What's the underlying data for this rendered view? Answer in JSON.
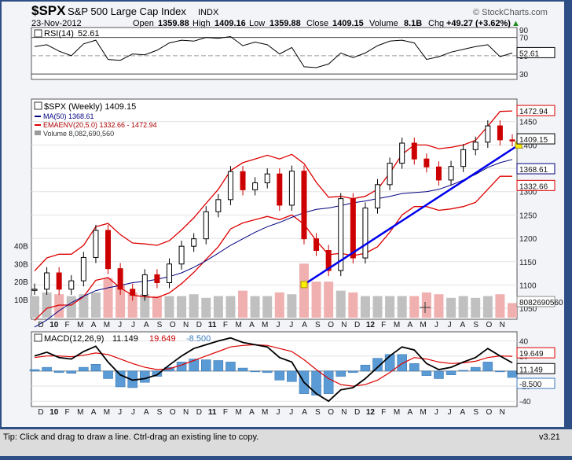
{
  "header": {
    "symbol": "$SPX",
    "name": "S&P 500 Large Cap Index",
    "exchange": "INDX",
    "date": "23-Nov-2012",
    "open_label": "Open",
    "open": "1359.88",
    "high_label": "High",
    "high": "1409.16",
    "low_label": "Low",
    "low": "1359.88",
    "close_label": "Close",
    "close": "1409.15",
    "volume_label": "Volume",
    "volume": "8.1B",
    "chg_label": "Chg",
    "chg": "+49.27 (+3.62%)",
    "chg_arrow": "▲",
    "copyright": "© StockCharts.com"
  },
  "footer": {
    "tip": "Tip: Click and drag to draw a line. Ctrl-drag an existing line to copy.",
    "version": "v3.21"
  },
  "colors": {
    "price_up": "#000000",
    "price_down": "#cc0000",
    "ma": "#000080",
    "envelope": "#dd0000",
    "trendline": "#0000ee",
    "volume_up": "#c0c0c0",
    "volume_down": "#f0b0b0",
    "macd": "#000000",
    "signal": "#dd0000",
    "histogram": "#5b9bd5",
    "rsi": "#000000"
  },
  "chart_data": [
    {
      "type": "line",
      "panel": "rsi",
      "legend": "RSI(14)",
      "legend_value": "52.61",
      "ylim": [
        25,
        80
      ],
      "ticks": [
        30,
        50,
        70,
        90
      ],
      "reference_lines": [
        30,
        50,
        70
      ],
      "last_value_label": "52.61",
      "x": [
        "2009-11-27",
        "2009-12-25",
        "2010-01-22",
        "2010-02-19",
        "2010-03-19",
        "2010-04-16",
        "2010-05-14",
        "2010-06-11",
        "2010-07-09",
        "2010-08-06",
        "2010-09-03",
        "2010-10-01",
        "2010-10-29",
        "2010-11-26",
        "2010-12-24",
        "2011-01-21",
        "2011-02-18",
        "2011-03-18",
        "2011-04-15",
        "2011-05-13",
        "2011-06-10",
        "2011-07-08",
        "2011-08-05",
        "2011-09-02",
        "2011-09-30",
        "2011-10-28",
        "2011-11-25",
        "2011-12-23",
        "2012-01-20",
        "2012-02-17",
        "2012-03-16",
        "2012-04-13",
        "2012-05-11",
        "2012-06-08",
        "2012-07-06",
        "2012-08-03",
        "2012-08-31",
        "2012-09-28",
        "2012-10-26",
        "2012-11-23"
      ],
      "values": [
        60,
        62,
        55,
        50,
        63,
        67,
        46,
        45,
        52,
        51,
        56,
        64,
        67,
        66,
        70,
        69,
        71,
        61,
        65,
        62,
        52,
        59,
        38,
        37,
        41,
        53,
        48,
        53,
        61,
        66,
        67,
        64,
        46,
        49,
        54,
        57,
        60,
        62,
        49,
        53
      ]
    },
    {
      "type": "line",
      "panel": "price",
      "title": "$SPX (Weekly) 1409.15",
      "ylim": [
        1030,
        1495
      ],
      "ticks": [
        1050,
        1100,
        1150,
        1200,
        1250,
        1300,
        1350,
        1400,
        1450
      ],
      "legend": [
        {
          "name": "MA(50) 1368.61"
        },
        {
          "name": "EMAENV(20,5.0) 1332.66 - 1472.94"
        },
        {
          "name": "Volume 8,082,690,560"
        }
      ],
      "x_labels": [
        "D",
        "10",
        "F",
        "M",
        "A",
        "M",
        "J",
        "J",
        "A",
        "S",
        "O",
        "N",
        "D",
        "11",
        "F",
        "M",
        "A",
        "M",
        "J",
        "J",
        "A",
        "S",
        "O",
        "N",
        "D",
        "12",
        "F",
        "M",
        "A",
        "M",
        "J",
        "J",
        "A",
        "S",
        "O",
        "N"
      ],
      "last_price_label": "1409.15",
      "ma_label": "1368.61",
      "env_upper_label": "1472.94",
      "env_lower_label": "1332.66",
      "volume_tick_labels": [
        "10B",
        "20B",
        "30B",
        "40B"
      ],
      "volume_last_label": "8082690560",
      "x": [
        "2009-11-27",
        "2009-12-25",
        "2010-01-22",
        "2010-02-19",
        "2010-03-19",
        "2010-04-16",
        "2010-05-14",
        "2010-06-11",
        "2010-07-09",
        "2010-08-06",
        "2010-09-03",
        "2010-10-01",
        "2010-10-29",
        "2010-11-26",
        "2010-12-24",
        "2011-01-21",
        "2011-02-18",
        "2011-03-18",
        "2011-04-15",
        "2011-05-13",
        "2011-06-10",
        "2011-07-08",
        "2011-08-05",
        "2011-09-02",
        "2011-09-30",
        "2011-10-28",
        "2011-11-25",
        "2011-12-23",
        "2012-01-20",
        "2012-02-17",
        "2012-03-16",
        "2012-04-13",
        "2012-05-11",
        "2012-06-08",
        "2012-07-06",
        "2012-08-03",
        "2012-08-31",
        "2012-09-28",
        "2012-10-26",
        "2012-11-23"
      ],
      "series": [
        {
          "name": "$SPX",
          "values": [
            1091,
            1126,
            1091,
            1109,
            1159,
            1217,
            1135,
            1091,
            1078,
            1122,
            1105,
            1145,
            1183,
            1199,
            1257,
            1283,
            1343,
            1304,
            1319,
            1338,
            1271,
            1344,
            1199,
            1174,
            1131,
            1285,
            1158,
            1265,
            1315,
            1361,
            1404,
            1370,
            1353,
            1325,
            1354,
            1390,
            1406,
            1441,
            1411,
            1409
          ]
        },
        {
          "name": "MA(50)",
          "values": [
            1010,
            1025,
            1045,
            1062,
            1076,
            1088,
            1094,
            1099,
            1105,
            1108,
            1112,
            1118,
            1126,
            1138,
            1152,
            1168,
            1185,
            1199,
            1213,
            1225,
            1234,
            1245,
            1255,
            1262,
            1265,
            1270,
            1276,
            1280,
            1285,
            1290,
            1296,
            1298,
            1300,
            1305,
            1314,
            1325,
            1337,
            1352,
            1362,
            1369
          ]
        },
        {
          "name": "Envelope upper",
          "values": [
            1130,
            1158,
            1166,
            1166,
            1185,
            1225,
            1232,
            1208,
            1190,
            1188,
            1185,
            1195,
            1218,
            1244,
            1275,
            1305,
            1345,
            1362,
            1370,
            1378,
            1370,
            1380,
            1360,
            1320,
            1288,
            1290,
            1285,
            1290,
            1305,
            1340,
            1380,
            1400,
            1400,
            1392,
            1395,
            1400,
            1410,
            1440,
            1472,
            1473
          ]
        },
        {
          "name": "Envelope lower",
          "values": [
            1024,
            1050,
            1057,
            1057,
            1075,
            1110,
            1116,
            1094,
            1078,
            1075,
            1073,
            1083,
            1103,
            1127,
            1155,
            1182,
            1220,
            1233,
            1240,
            1247,
            1240,
            1250,
            1230,
            1195,
            1165,
            1168,
            1163,
            1168,
            1182,
            1213,
            1250,
            1268,
            1268,
            1260,
            1263,
            1268,
            1277,
            1305,
            1333,
            1333
          ]
        }
      ],
      "trendline": {
        "x": [
          "2011-08-05",
          "2012-11-23"
        ],
        "values": [
          1101,
          1400
        ]
      },
      "volume": [
        12,
        14,
        13,
        12,
        13,
        14,
        22,
        18,
        14,
        13,
        12,
        12,
        12,
        13,
        11,
        12,
        12,
        15,
        12,
        12,
        14,
        13,
        30,
        20,
        20,
        15,
        14,
        12,
        12,
        12,
        12,
        12,
        14,
        13,
        11,
        12,
        11,
        12,
        13,
        8.1
      ]
    },
    {
      "type": "line",
      "panel": "macd",
      "legend": "MACD(12,26,9)",
      "legend_values": [
        "11.149",
        "19.649",
        "-8.500"
      ],
      "ylim": [
        -45,
        50
      ],
      "ticks": [
        -40,
        -20,
        0,
        20,
        40
      ],
      "last_value_labels": [
        "19.649",
        "11.149",
        "-8.500"
      ],
      "x_labels": [
        "D",
        "10",
        "F",
        "M",
        "A",
        "M",
        "J",
        "J",
        "A",
        "S",
        "O",
        "N",
        "D",
        "11",
        "F",
        "M",
        "A",
        "M",
        "J",
        "J",
        "A",
        "S",
        "O",
        "N",
        "D",
        "12",
        "F",
        "M",
        "A",
        "M",
        "J",
        "J",
        "A",
        "S",
        "O",
        "N"
      ],
      "x": [
        "2009-11-27",
        "2009-12-25",
        "2010-01-22",
        "2010-02-19",
        "2010-03-19",
        "2010-04-16",
        "2010-05-14",
        "2010-06-11",
        "2010-07-09",
        "2010-08-06",
        "2010-09-03",
        "2010-10-01",
        "2010-10-29",
        "2010-11-26",
        "2010-12-24",
        "2011-01-21",
        "2011-02-18",
        "2011-03-18",
        "2011-04-15",
        "2011-05-13",
        "2011-06-10",
        "2011-07-08",
        "2011-08-05",
        "2011-09-02",
        "2011-09-30",
        "2011-10-28",
        "2011-11-25",
        "2011-12-23",
        "2012-01-20",
        "2012-02-17",
        "2012-03-16",
        "2012-04-13",
        "2012-05-11",
        "2012-06-08",
        "2012-07-06",
        "2012-08-03",
        "2012-08-31",
        "2012-09-28",
        "2012-10-26",
        "2012-11-23"
      ],
      "series": [
        {
          "name": "MACD",
          "values": [
            20,
            25,
            18,
            16,
            26,
            33,
            12,
            -5,
            -12,
            -10,
            -5,
            8,
            20,
            30,
            35,
            40,
            44,
            38,
            35,
            32,
            18,
            12,
            -15,
            -30,
            -40,
            -25,
            -22,
            -10,
            5,
            20,
            32,
            28,
            10,
            2,
            5,
            12,
            18,
            30,
            20,
            11
          ]
        },
        {
          "name": "Signal",
          "values": [
            18,
            20,
            20,
            19,
            21,
            24,
            22,
            16,
            10,
            5,
            2,
            3,
            8,
            14,
            20,
            26,
            32,
            34,
            35,
            34,
            30,
            26,
            15,
            2,
            -10,
            -18,
            -20,
            -18,
            -12,
            -2,
            10,
            18,
            16,
            12,
            10,
            11,
            13,
            18,
            20,
            19.6
          ]
        },
        {
          "name": "Histogram",
          "values": [
            2,
            5,
            -2,
            -3,
            5,
            9,
            -10,
            -21,
            -22,
            -15,
            -7,
            5,
            12,
            16,
            15,
            14,
            12,
            4,
            0,
            -2,
            -12,
            -14,
            -30,
            -32,
            -30,
            -7,
            -2,
            8,
            17,
            22,
            22,
            10,
            -6,
            -10,
            -5,
            1,
            5,
            12,
            0,
            -8.5
          ]
        }
      ]
    }
  ]
}
